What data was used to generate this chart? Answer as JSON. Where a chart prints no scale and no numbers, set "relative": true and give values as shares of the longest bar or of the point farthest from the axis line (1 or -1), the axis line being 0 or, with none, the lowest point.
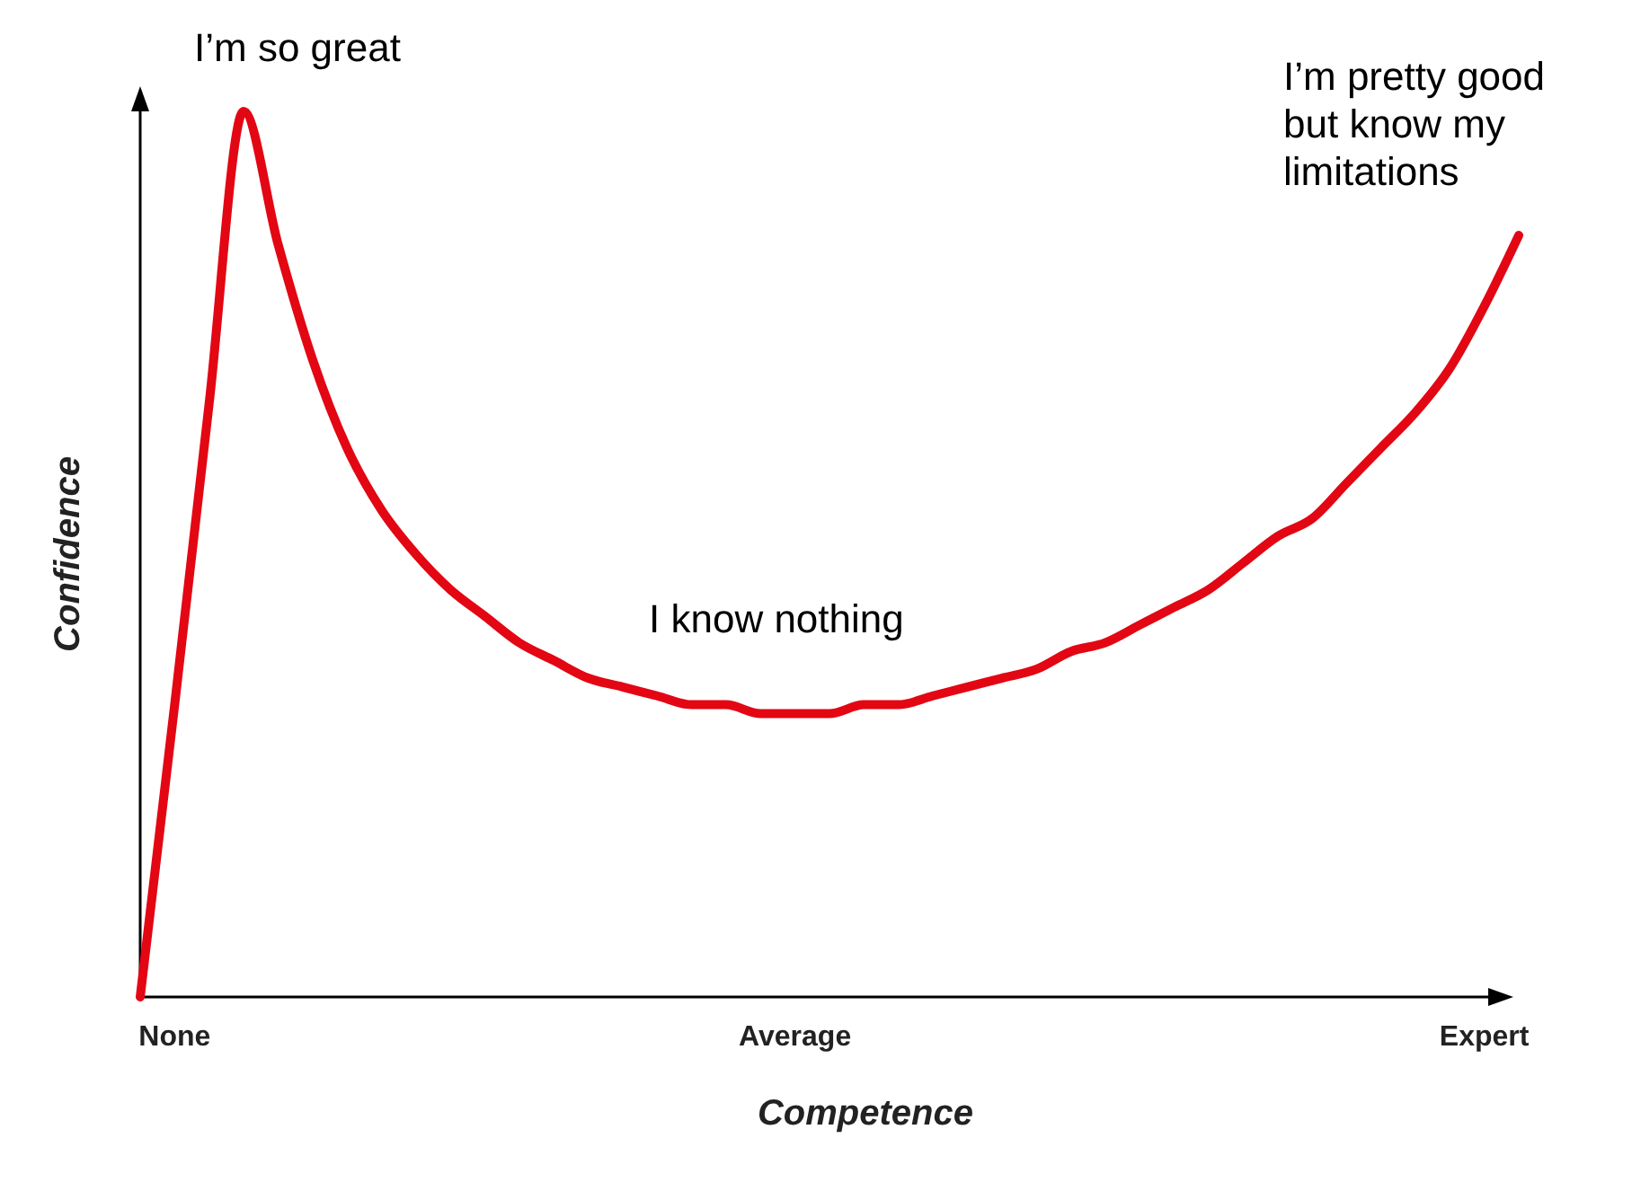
{
  "chart_data": {
    "type": "line",
    "relative": true,
    "xlabel": "Competence",
    "ylabel": "Confidence",
    "categories": [
      null,
      "None",
      null,
      null,
      null,
      null,
      null,
      null,
      null,
      null,
      null,
      null,
      null,
      null,
      null,
      null,
      null,
      null,
      null,
      "Average",
      null,
      null,
      null,
      null,
      null,
      null,
      null,
      null,
      null,
      null,
      null,
      null,
      null,
      null,
      null,
      null,
      null,
      null,
      null,
      "Expert",
      null
    ],
    "series": [
      {
        "color": "#e30613",
        "values": [
          0,
          0.33,
          0.67,
          1,
          0.85,
          0.72,
          0.62,
          0.55,
          0.5,
          0.46,
          0.43,
          0.4,
          0.38,
          0.36,
          0.35,
          0.34,
          0.33,
          0.33,
          0.32,
          0.32,
          0.32,
          0.33,
          0.33,
          0.34,
          0.35,
          0.36,
          0.37,
          0.39,
          0.4,
          0.42,
          0.44,
          0.46,
          0.49,
          0.52,
          0.54,
          0.58,
          0.62,
          0.66,
          0.71,
          0.78,
          0.86
        ]
      }
    ],
    "annotations": [
      "I’m so great",
      "I know nothing",
      "I’m pretty good but know my limitations"
    ],
    "marker": "none",
    "line_style": "solid"
  }
}
